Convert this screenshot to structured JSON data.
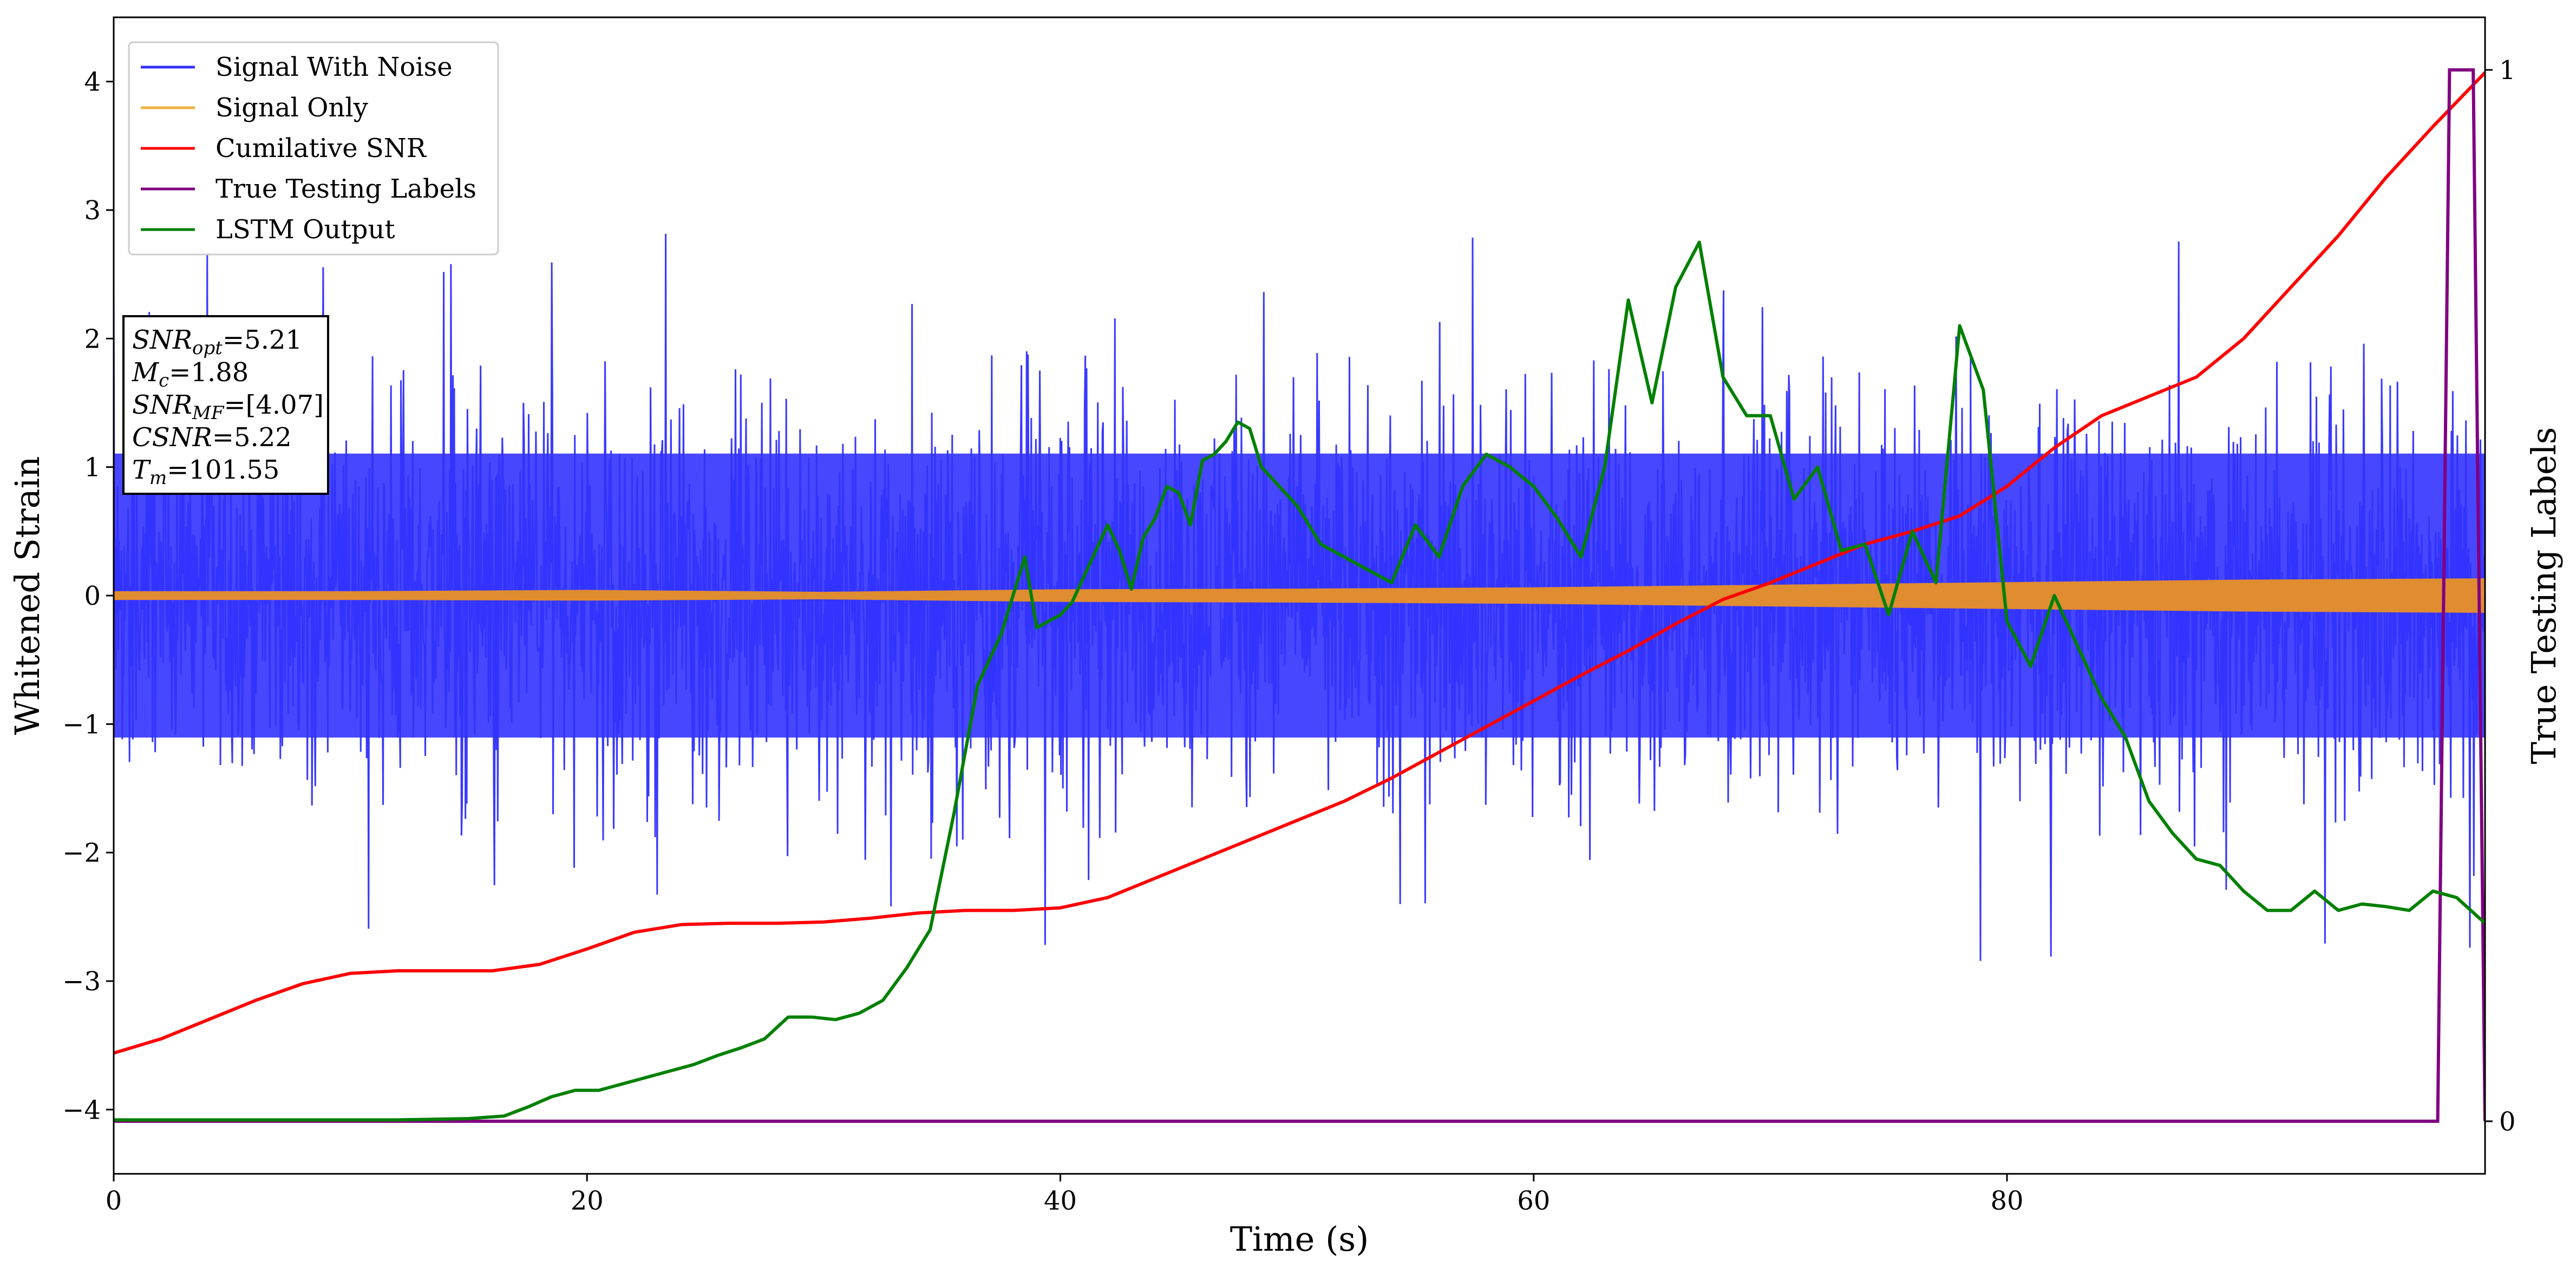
{
  "chart_data": {
    "type": "line",
    "xlabel": "Time (s)",
    "ylabel": "Whitened Strain",
    "y2label": "True Testing Labels",
    "xlim": [
      0,
      100.2
    ],
    "ylim": [
      -4.5,
      4.5
    ],
    "y2lim": [
      -0.05,
      1.05
    ],
    "xticks": [
      0,
      20,
      40,
      60,
      80
    ],
    "yticks": [
      -4,
      -3,
      -2,
      -1,
      0,
      1,
      2,
      3,
      4
    ],
    "y2ticks": [
      0,
      1
    ],
    "legend_position": "upper-left",
    "legend": [
      {
        "label": "Signal With Noise",
        "color": "#3333ff"
      },
      {
        "label": "Signal Only",
        "color": "#f0b040"
      },
      {
        "label": "Cumilative SNR",
        "color": "#ff0000"
      },
      {
        "label": "True Testing Labels",
        "color": "#800080"
      },
      {
        "label": "LSTM Output",
        "color": "#008000"
      }
    ],
    "annotation": [
      {
        "base": "SNR",
        "sub": "opt",
        "value": "=5.21"
      },
      {
        "base": "M",
        "sub": "c",
        "value": "=1.88"
      },
      {
        "base": "SNR",
        "sub": "MF",
        "value": "=[4.07]"
      },
      {
        "base": "CSNR",
        "sub": "",
        "value": "=5.22"
      },
      {
        "base": "T",
        "sub": "m",
        "value": "=101.55"
      }
    ],
    "series": [
      {
        "name": "Signal With Noise",
        "color": "#3333ff",
        "description_values": {
          "band_upper": 1.3,
          "band_lower": -1.3,
          "max_spike": 3.25,
          "min_spike": -3.2
        }
      },
      {
        "name": "Signal Only",
        "color": "#e08c30",
        "envelope": {
          "x": [
            0,
            10,
            20,
            30,
            40,
            50,
            60,
            70,
            80,
            90,
            100.2
          ],
          "upper": [
            0.03,
            0.03,
            0.04,
            0.025,
            0.045,
            0.05,
            0.06,
            0.08,
            0.1,
            0.12,
            0.13
          ],
          "lower": [
            -0.03,
            -0.03,
            -0.035,
            -0.025,
            -0.045,
            -0.05,
            -0.06,
            -0.08,
            -0.1,
            -0.12,
            -0.13
          ]
        }
      },
      {
        "name": "Cumilative SNR",
        "color": "#ff0000",
        "x": [
          0,
          2,
          4,
          6,
          8,
          10,
          12,
          14,
          16,
          18,
          20,
          22,
          24,
          26,
          28,
          30,
          32,
          34,
          36,
          38,
          40,
          42,
          44,
          46,
          48,
          50,
          52,
          54,
          56,
          58,
          60,
          62,
          64,
          66,
          68,
          70,
          72,
          74,
          76,
          78,
          80,
          82,
          84,
          86,
          88,
          90,
          92,
          94,
          96,
          98,
          100.2
        ],
        "y": [
          -3.56,
          -3.45,
          -3.3,
          -3.15,
          -3.02,
          -2.94,
          -2.92,
          -2.92,
          -2.92,
          -2.87,
          -2.75,
          -2.62,
          -2.56,
          -2.55,
          -2.55,
          -2.54,
          -2.51,
          -2.47,
          -2.45,
          -2.45,
          -2.43,
          -2.35,
          -2.2,
          -2.05,
          -1.9,
          -1.75,
          -1.6,
          -1.42,
          -1.22,
          -1.02,
          -0.82,
          -0.62,
          -0.43,
          -0.22,
          -0.03,
          0.1,
          0.25,
          0.4,
          0.5,
          0.62,
          0.85,
          1.15,
          1.4,
          1.55,
          1.7,
          2.0,
          2.4,
          2.8,
          3.25,
          3.65,
          4.07
        ]
      },
      {
        "name": "True Testing Labels",
        "color": "#800080",
        "axis": "right",
        "x": [
          0,
          98.2,
          98.7,
          99.7,
          100.2
        ],
        "y": [
          0,
          0,
          1,
          1,
          0
        ]
      },
      {
        "name": "LSTM Output",
        "color": "#008000",
        "x": [
          0,
          12,
          15,
          16.5,
          17.5,
          18.5,
          19.5,
          20.5,
          21.5,
          22.5,
          23.5,
          24.5,
          25.5,
          26.5,
          27.5,
          28.5,
          29.5,
          30.5,
          31.5,
          32.5,
          33.5,
          34.5,
          35.5,
          36.5,
          37.5,
          38.5,
          39,
          40,
          40.5,
          41.5,
          42,
          42.5,
          43,
          43.5,
          44,
          44.5,
          45,
          45.5,
          46,
          46.5,
          47,
          47.5,
          48,
          48.5,
          49,
          50,
          51,
          52,
          53,
          54,
          55,
          56,
          57,
          58,
          59,
          60,
          61,
          62,
          63,
          64,
          65,
          66,
          67,
          68,
          69,
          70,
          71,
          72,
          73,
          74,
          75,
          76,
          77,
          78,
          79,
          80,
          81,
          82,
          83,
          84,
          85,
          86,
          87,
          88,
          89,
          90,
          91,
          92,
          93,
          94,
          95,
          96,
          97,
          98,
          99,
          100.2
        ],
        "y": [
          -4.08,
          -4.08,
          -4.07,
          -4.05,
          -3.98,
          -3.9,
          -3.85,
          -3.85,
          -3.8,
          -3.75,
          -3.7,
          -3.65,
          -3.58,
          -3.52,
          -3.45,
          -3.28,
          -3.28,
          -3.3,
          -3.25,
          -3.15,
          -2.9,
          -2.6,
          -1.7,
          -0.7,
          -0.3,
          0.3,
          -0.25,
          -0.15,
          -0.05,
          0.35,
          0.55,
          0.35,
          0.05,
          0.45,
          0.6,
          0.85,
          0.8,
          0.55,
          1.05,
          1.1,
          1.2,
          1.35,
          1.3,
          1.0,
          0.9,
          0.7,
          0.4,
          0.3,
          0.2,
          0.1,
          0.55,
          0.3,
          0.85,
          1.1,
          1.0,
          0.85,
          0.6,
          0.3,
          1.0,
          2.3,
          1.5,
          2.4,
          2.75,
          1.7,
          1.4,
          1.4,
          0.75,
          1.0,
          0.35,
          0.4,
          -0.15,
          0.5,
          0.1,
          2.1,
          1.6,
          -0.2,
          -0.55,
          0.0,
          -0.4,
          -0.8,
          -1.1,
          -1.6,
          -1.85,
          -2.05,
          -2.1,
          -2.3,
          -2.45,
          -2.45,
          -2.3,
          -2.45,
          -2.4,
          -2.42,
          -2.45,
          -2.3,
          -2.35,
          -2.55
        ]
      }
    ]
  }
}
